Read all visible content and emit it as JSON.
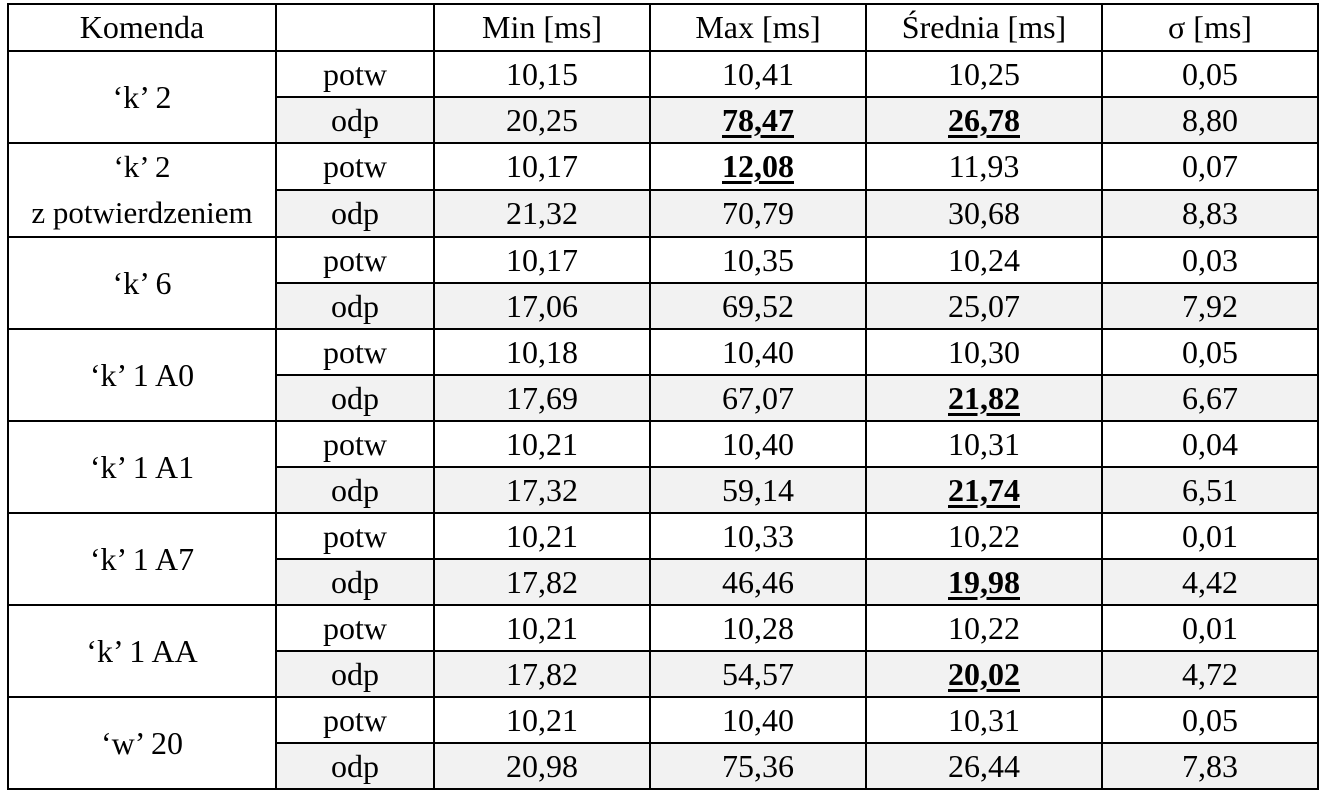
{
  "table": {
    "headers": {
      "command": "Komenda",
      "type": "",
      "min": "Min [ms]",
      "max": "Max [ms]",
      "avg": "Średnia [ms]",
      "sigma": "σ [ms]"
    },
    "groups": [
      {
        "command": "‘k’ 2",
        "command_line2": "",
        "rows": [
          {
            "type": "potw",
            "min": "10,15",
            "max": "10,41",
            "avg": "10,25",
            "sigma": "0,05",
            "highlight": []
          },
          {
            "type": "odp",
            "min": "20,25",
            "max": "78,47",
            "avg": "26,78",
            "sigma": "8,80",
            "highlight": [
              "max",
              "avg"
            ]
          }
        ]
      },
      {
        "command": "‘k’ 2",
        "command_line2": "z potwierdzeniem",
        "rows": [
          {
            "type": "potw",
            "min": "10,17",
            "max": "12,08",
            "avg": "11,93",
            "sigma": "0,07",
            "highlight": [
              "max"
            ]
          },
          {
            "type": "odp",
            "min": "21,32",
            "max": "70,79",
            "avg": "30,68",
            "sigma": "8,83",
            "highlight": []
          }
        ]
      },
      {
        "command": "‘k’ 6",
        "command_line2": "",
        "rows": [
          {
            "type": "potw",
            "min": "10,17",
            "max": "10,35",
            "avg": "10,24",
            "sigma": "0,03",
            "highlight": []
          },
          {
            "type": "odp",
            "min": "17,06",
            "max": "69,52",
            "avg": "25,07",
            "sigma": "7,92",
            "highlight": []
          }
        ]
      },
      {
        "command": "‘k’ 1 A0",
        "command_line2": "",
        "rows": [
          {
            "type": "potw",
            "min": "10,18",
            "max": "10,40",
            "avg": "10,30",
            "sigma": "0,05",
            "highlight": []
          },
          {
            "type": "odp",
            "min": "17,69",
            "max": "67,07",
            "avg": "21,82",
            "sigma": "6,67",
            "highlight": [
              "avg"
            ]
          }
        ]
      },
      {
        "command": "‘k’ 1 A1",
        "command_line2": "",
        "rows": [
          {
            "type": "potw",
            "min": "10,21",
            "max": "10,40",
            "avg": "10,31",
            "sigma": "0,04",
            "highlight": []
          },
          {
            "type": "odp",
            "min": "17,32",
            "max": "59,14",
            "avg": "21,74",
            "sigma": "6,51",
            "highlight": [
              "avg"
            ]
          }
        ]
      },
      {
        "command": "‘k’ 1 A7",
        "command_line2": "",
        "rows": [
          {
            "type": "potw",
            "min": "10,21",
            "max": "10,33",
            "avg": "10,22",
            "sigma": "0,01",
            "highlight": []
          },
          {
            "type": "odp",
            "min": "17,82",
            "max": "46,46",
            "avg": "19,98",
            "sigma": "4,42",
            "highlight": [
              "avg"
            ]
          }
        ]
      },
      {
        "command": "‘k’ 1 AA",
        "command_line2": "",
        "rows": [
          {
            "type": "potw",
            "min": "10,21",
            "max": "10,28",
            "avg": "10,22",
            "sigma": "0,01",
            "highlight": []
          },
          {
            "type": "odp",
            "min": "17,82",
            "max": "54,57",
            "avg": "20,02",
            "sigma": "4,72",
            "highlight": [
              "avg"
            ]
          }
        ]
      },
      {
        "command": "‘w’ 20",
        "command_line2": "",
        "rows": [
          {
            "type": "potw",
            "min": "10,21",
            "max": "10,40",
            "avg": "10,31",
            "sigma": "0,05",
            "highlight": []
          },
          {
            "type": "odp",
            "min": "20,98",
            "max": "75,36",
            "avg": "26,44",
            "sigma": "7,83",
            "highlight": []
          }
        ]
      }
    ]
  }
}
